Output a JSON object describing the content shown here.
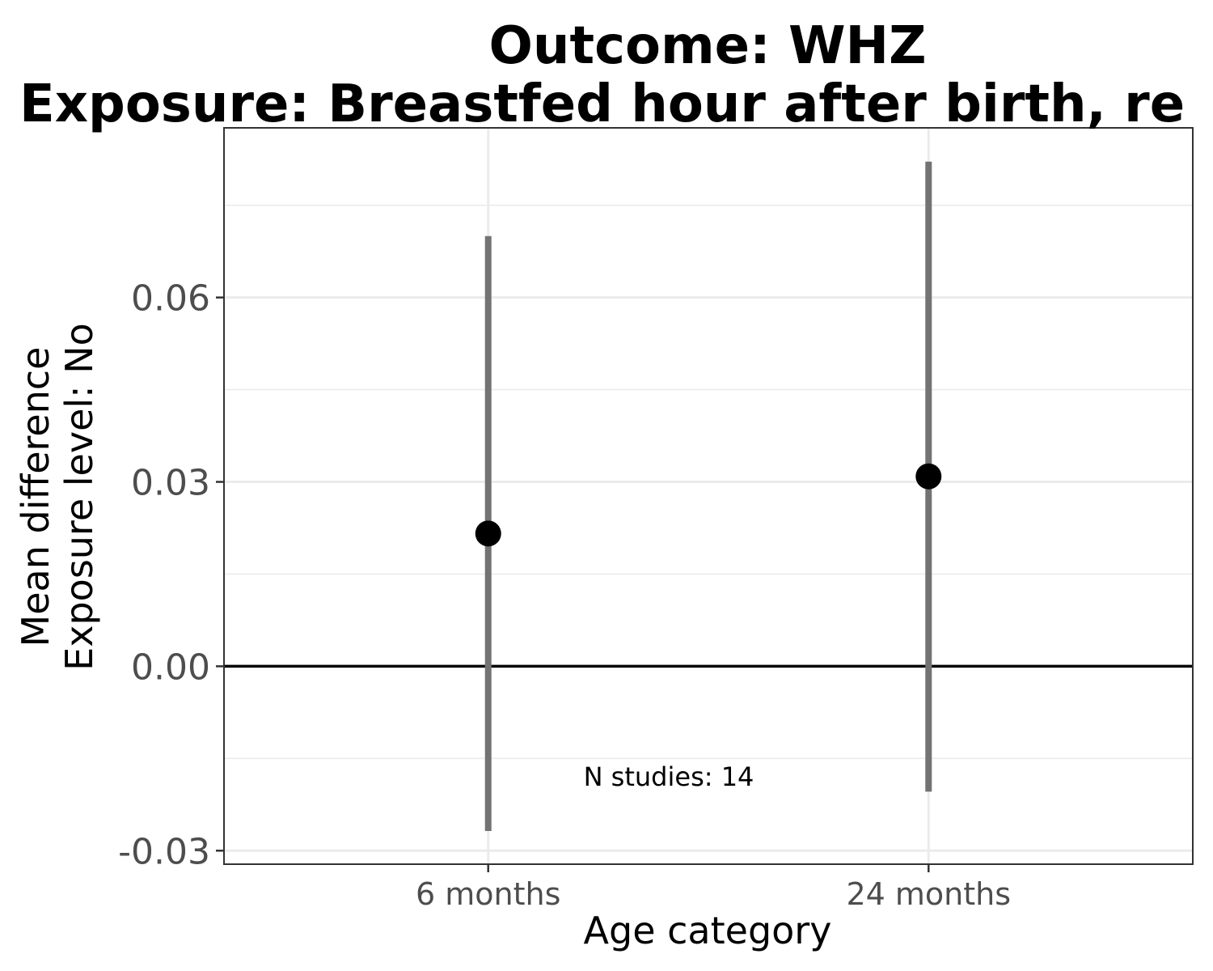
{
  "chart_data": {
    "type": "scatter",
    "title_line1": "Outcome: WHZ",
    "title_line2": "Exposure: Breastfed hour after birth, re",
    "xlabel": "Age category",
    "ylabel_line1": "Mean difference",
    "ylabel_line2": "Exposure level: No",
    "categories": [
      "6 months",
      "24 months"
    ],
    "series": [
      {
        "estimates": [
          0.0216,
          0.0309
        ],
        "ci_lower": [
          -0.0268,
          -0.0204
        ],
        "ci_upper": [
          0.07,
          0.0821
        ]
      }
    ],
    "reference_line": 0,
    "ylim": [
      -0.0322,
      0.0876
    ],
    "yticks": [
      -0.03,
      0.0,
      0.03,
      0.06
    ],
    "ytick_labels": [
      "-0.03",
      "0.00",
      "0.03",
      "0.06"
    ],
    "annotation": "N studies: 14",
    "annotation_x": 1.41,
    "annotation_y": -0.018,
    "grid": true,
    "colors": {
      "point": "#000000",
      "errorbar": "#737373",
      "reference": "#000000",
      "grid": "#ebebeb",
      "panel_border": "#333333"
    }
  }
}
